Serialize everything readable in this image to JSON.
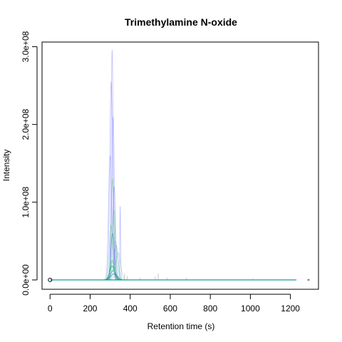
{
  "chart_data": {
    "type": "line",
    "title": "Trimethylamine N-oxide",
    "xlabel": "Retention time (s)",
    "ylabel": "Intensity",
    "xlim": [
      -40,
      1340
    ],
    "ylim": [
      -12000000,
      306000000
    ],
    "x_ticks": [
      0,
      200,
      400,
      600,
      800,
      1000,
      1200
    ],
    "x_tick_labels": [
      "0",
      "200",
      "400",
      "600",
      "800",
      "1000",
      "1200"
    ],
    "y_ticks": [
      0,
      100000000,
      200000000,
      300000000
    ],
    "y_tick_labels": [
      "0.0e+00",
      "1.0e+08",
      "2.0e+08",
      "3.0e+08"
    ],
    "grid": false,
    "colors": {
      "blue": "#4040ff",
      "green": "#22bb55",
      "teal": "#10a090",
      "gray": "#888888"
    },
    "peaks": [
      {
        "color": "blue",
        "center": 310,
        "height": 296000000,
        "width": 5,
        "opacity": 0.35
      },
      {
        "color": "blue",
        "center": 305,
        "height": 255000000,
        "width": 7,
        "opacity": 0.3
      },
      {
        "color": "blue",
        "center": 315,
        "height": 210000000,
        "width": 6,
        "opacity": 0.3
      },
      {
        "color": "blue",
        "center": 300,
        "height": 160000000,
        "width": 8,
        "opacity": 0.3
      },
      {
        "color": "blue",
        "center": 320,
        "height": 120000000,
        "width": 7,
        "opacity": 0.3
      },
      {
        "color": "blue",
        "center": 312,
        "height": 60000000,
        "width": 9,
        "opacity": 0.5
      },
      {
        "color": "blue",
        "center": 330,
        "height": 45000000,
        "width": 10,
        "opacity": 0.3
      },
      {
        "color": "blue",
        "center": 350,
        "height": 95000000,
        "width": 2,
        "opacity": 0.35
      },
      {
        "color": "green",
        "center": 312,
        "height": 130000000,
        "width": 7,
        "opacity": 0.35
      },
      {
        "color": "green",
        "center": 318,
        "height": 90000000,
        "width": 8,
        "opacity": 0.35
      },
      {
        "color": "green",
        "center": 305,
        "height": 70000000,
        "width": 9,
        "opacity": 0.35
      },
      {
        "color": "green",
        "center": 325,
        "height": 50000000,
        "width": 10,
        "opacity": 0.35
      },
      {
        "color": "green",
        "center": 340,
        "height": 35000000,
        "width": 12,
        "opacity": 0.35
      },
      {
        "color": "green",
        "center": 310,
        "height": 25000000,
        "width": 10,
        "opacity": 0.7
      },
      {
        "color": "teal",
        "center": 310,
        "height": 18000000,
        "width": 12,
        "opacity": 0.8
      },
      {
        "color": "teal",
        "center": 315,
        "height": 12000000,
        "width": 14,
        "opacity": 0.8
      },
      {
        "color": "teal",
        "center": 320,
        "height": 8000000,
        "width": 16,
        "opacity": 0.8
      }
    ],
    "spikes": [
      {
        "color": "gray",
        "x": 372,
        "height": 8000000
      },
      {
        "color": "gray",
        "x": 385,
        "height": 5000000
      },
      {
        "color": "gray",
        "x": 450,
        "height": 3000000
      },
      {
        "color": "gray",
        "x": 540,
        "height": 8000000
      },
      {
        "color": "gray",
        "x": 525,
        "height": 4000000
      },
      {
        "color": "gray",
        "x": 585,
        "height": 3000000
      },
      {
        "color": "gray",
        "x": 680,
        "height": 2500000
      },
      {
        "color": "gray",
        "x": 1010,
        "height": 2000000
      }
    ],
    "baseline_range": [
      0,
      1230
    ],
    "marker_point": {
      "x": 0,
      "y": 0
    },
    "extra_dash_x": 1290
  }
}
